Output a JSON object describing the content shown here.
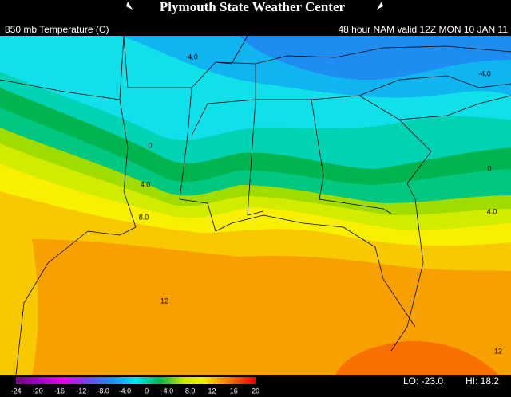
{
  "header": {
    "title": "Plymouth State Weather Center",
    "left": "850 mb Temperature (C)",
    "right": "48 hour NAM valid 12Z MON 10 JAN 11"
  },
  "map": {
    "contour_labels": [
      "-4.0",
      "-4.0",
      "0",
      "0",
      "4.0",
      "4.0",
      "8.0",
      "12",
      "12"
    ]
  },
  "colorbar": {
    "lim": [
      -24,
      20
    ],
    "ticks": [
      -24,
      -20,
      -16,
      -12,
      {
        "value": -8,
        "label": "-8.0"
      },
      {
        "value": -4,
        "label": "-4.0"
      },
      0,
      {
        "value": 4,
        "label": "4.0"
      },
      {
        "value": 8,
        "label": "8.0"
      },
      12,
      16,
      20
    ]
  },
  "extremes": {
    "lo": "LO: -23.0",
    "hi": "HI: 18.2"
  }
}
